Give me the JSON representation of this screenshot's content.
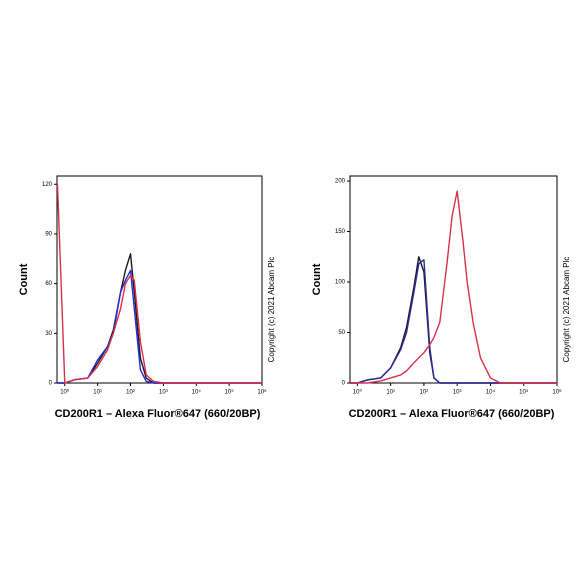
{
  "chart_data": [
    {
      "type": "line",
      "x_scale": "log",
      "ylabel": "Count",
      "xlabel": "CD200R1 – Alexa Fluor®647 (660/20BP)",
      "note": "Copyright (c) 2021 Abcam Plc",
      "xlim": [
        0.58,
        1000000
      ],
      "ylim": [
        0,
        125
      ],
      "xticks": [
        {
          "value": 1,
          "label": "10⁰"
        },
        {
          "value": 10,
          "label": "10¹"
        },
        {
          "value": 100,
          "label": "10²"
        },
        {
          "value": 1000,
          "label": "10³"
        },
        {
          "value": 10000,
          "label": "10⁴"
        },
        {
          "value": 100000,
          "label": "10⁵"
        },
        {
          "value": 1000000,
          "label": "10⁶"
        }
      ],
      "yticks": [
        0,
        30,
        60,
        90,
        120
      ],
      "x": [
        0.6,
        1,
        2,
        5,
        10,
        20,
        30,
        50,
        70,
        100,
        130,
        200,
        300,
        500,
        1000,
        1000000
      ],
      "series": [
        {
          "color": "#1a1a1a",
          "values": [
            0,
            0,
            2,
            3,
            12,
            22,
            32,
            55,
            68,
            78,
            55,
            15,
            3,
            0,
            0,
            0
          ]
        },
        {
          "color": "#2b2bd0",
          "values": [
            0,
            0,
            2,
            3,
            14,
            22,
            30,
            55,
            62,
            68,
            45,
            8,
            1,
            0,
            0,
            0
          ]
        },
        {
          "color": "#d8304a",
          "values": [
            120,
            0,
            2,
            3,
            10,
            20,
            30,
            45,
            60,
            65,
            62,
            25,
            5,
            1,
            0,
            0
          ]
        }
      ]
    },
    {
      "type": "line",
      "x_scale": "log",
      "ylabel": "Count",
      "xlabel": "CD200R1 – Alexa Fluor®647 (660/20BP)",
      "note": "Copyright (c) 2021 Abcam Plc",
      "xlim": [
        0.6,
        1000000
      ],
      "ylim": [
        0,
        205
      ],
      "xticks": [
        {
          "value": 1,
          "label": "10⁰"
        },
        {
          "value": 10,
          "label": "10¹"
        },
        {
          "value": 100,
          "label": "10²"
        },
        {
          "value": 1000,
          "label": "10³"
        },
        {
          "value": 10000,
          "label": "10⁴"
        },
        {
          "value": 100000,
          "label": "10⁵"
        },
        {
          "value": 1000000,
          "label": "10⁶"
        }
      ],
      "yticks": [
        0,
        50,
        100,
        150,
        200
      ],
      "x": [
        0.6,
        1,
        2,
        5,
        10,
        20,
        30,
        50,
        70,
        100,
        150,
        200,
        300,
        500,
        700,
        1000,
        1500,
        2000,
        3000,
        5000,
        10000,
        20000,
        1000000
      ],
      "series": [
        {
          "color": "#1a1a1a",
          "values": [
            0,
            0,
            3,
            5,
            15,
            35,
            55,
            95,
            125,
            110,
            30,
            5,
            0,
            0,
            0,
            0,
            0,
            0,
            0,
            0,
            0,
            0,
            0
          ]
        },
        {
          "color": "#2a2a9a",
          "values": [
            0,
            0,
            3,
            5,
            15,
            33,
            50,
            90,
            118,
            122,
            35,
            5,
            0,
            0,
            0,
            0,
            0,
            0,
            0,
            0,
            0,
            0,
            0
          ]
        },
        {
          "color": "#d8304a",
          "values": [
            0,
            0,
            0,
            2,
            5,
            8,
            12,
            20,
            25,
            30,
            38,
            45,
            60,
            120,
            165,
            190,
            140,
            100,
            60,
            25,
            5,
            0,
            0
          ]
        }
      ]
    }
  ]
}
